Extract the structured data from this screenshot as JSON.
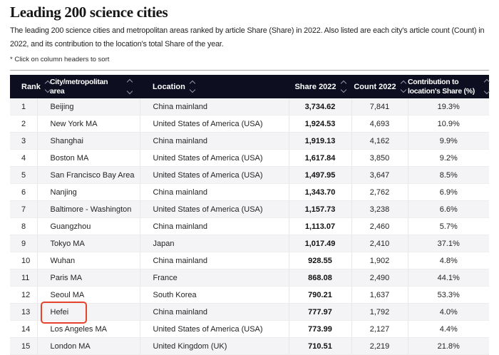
{
  "page": {
    "title": "Leading 200 science cities",
    "description": "The leading 200 science cities and metropolitan areas ranked by article Share (Share) in 2022. Also listed are each city's article count (Count) in 2022, and its contribution to the location's total Share of the year.",
    "footnote": "* Click on column headers to sort"
  },
  "colors": {
    "header_bg": "#0d0e20",
    "stripe": "#f4f4f6",
    "highlight": "#e5432c"
  },
  "table": {
    "columns": [
      {
        "key": "rank",
        "label": "Rank",
        "align": "left",
        "sortable": true
      },
      {
        "key": "city",
        "label": "City/metropolitan area",
        "align": "left",
        "sortable": true
      },
      {
        "key": "location",
        "label": "Location",
        "align": "left",
        "sortable": true
      },
      {
        "key": "share",
        "label": "Share 2022",
        "align": "center",
        "sortable": true
      },
      {
        "key": "count",
        "label": "Count 2022",
        "align": "center",
        "sortable": true
      },
      {
        "key": "contribution",
        "label": "Contribution to location's Share (%)",
        "align": "center",
        "sortable": true
      }
    ],
    "rows": [
      {
        "rank": "1",
        "city": "Beijing",
        "location": "China mainland",
        "share": "3,734.62",
        "count": "7,841",
        "contribution": "19.3%"
      },
      {
        "rank": "2",
        "city": "New York MA",
        "location": "United States of America (USA)",
        "share": "1,924.53",
        "count": "4,693",
        "contribution": "10.9%"
      },
      {
        "rank": "3",
        "city": "Shanghai",
        "location": "China mainland",
        "share": "1,919.13",
        "count": "4,162",
        "contribution": "9.9%"
      },
      {
        "rank": "4",
        "city": "Boston MA",
        "location": "United States of America (USA)",
        "share": "1,617.84",
        "count": "3,850",
        "contribution": "9.2%"
      },
      {
        "rank": "5",
        "city": "San Francisco Bay Area",
        "location": "United States of America (USA)",
        "share": "1,497.95",
        "count": "3,647",
        "contribution": "8.5%"
      },
      {
        "rank": "6",
        "city": "Nanjing",
        "location": "China mainland",
        "share": "1,343.70",
        "count": "2,762",
        "contribution": "6.9%"
      },
      {
        "rank": "7",
        "city": "Baltimore - Washington",
        "location": "United States of America (USA)",
        "share": "1,157.73",
        "count": "3,238",
        "contribution": "6.6%"
      },
      {
        "rank": "8",
        "city": "Guangzhou",
        "location": "China mainland",
        "share": "1,113.07",
        "count": "2,460",
        "contribution": "5.7%"
      },
      {
        "rank": "9",
        "city": "Tokyo MA",
        "location": "Japan",
        "share": "1,017.49",
        "count": "2,410",
        "contribution": "37.1%"
      },
      {
        "rank": "10",
        "city": "Wuhan",
        "location": "China mainland",
        "share": "928.55",
        "count": "1,902",
        "contribution": "4.8%"
      },
      {
        "rank": "11",
        "city": "Paris MA",
        "location": "France",
        "share": "868.08",
        "count": "2,490",
        "contribution": "44.1%"
      },
      {
        "rank": "12",
        "city": "Seoul MA",
        "location": "South Korea",
        "share": "790.21",
        "count": "1,637",
        "contribution": "53.3%"
      },
      {
        "rank": "13",
        "city": "Hefei",
        "location": "China mainland",
        "share": "777.97",
        "count": "1,792",
        "contribution": "4.0%",
        "highlighted": true
      },
      {
        "rank": "14",
        "city": "Los Angeles MA",
        "location": "United States of America (USA)",
        "share": "773.99",
        "count": "2,127",
        "contribution": "4.4%"
      },
      {
        "rank": "15",
        "city": "London MA",
        "location": "United Kingdom (UK)",
        "share": "710.51",
        "count": "2,219",
        "contribution": "21.8%"
      }
    ]
  }
}
